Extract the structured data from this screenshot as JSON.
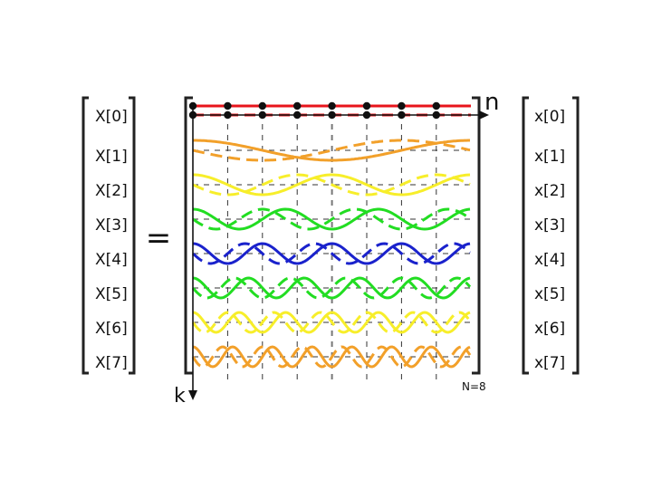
{
  "output_vector": [
    "X[0]",
    "X[1]",
    "X[2]",
    "X[3]",
    "X[4]",
    "X[5]",
    "X[6]",
    "X[7]"
  ],
  "input_vector": [
    "x[0]",
    "x[1]",
    "x[2]",
    "x[3]",
    "x[4]",
    "x[5]",
    "x[6]",
    "x[7]"
  ],
  "equals_sign": "=",
  "axis_n_label": "n",
  "axis_k_label": "k",
  "size_note": "N=8",
  "N": 8,
  "rows": [
    {
      "k": 0,
      "color": "#e8141b"
    },
    {
      "k": 1,
      "color": "#f2a02a"
    },
    {
      "k": 2,
      "color": "#f7ee2a"
    },
    {
      "k": 3,
      "color": "#22dd22"
    },
    {
      "k": 4,
      "color": "#1a22cc"
    },
    {
      "k": 5,
      "color": "#22dd22"
    },
    {
      "k": 6,
      "color": "#f7ee2a"
    },
    {
      "k": 7,
      "color": "#f2a02a"
    }
  ]
}
